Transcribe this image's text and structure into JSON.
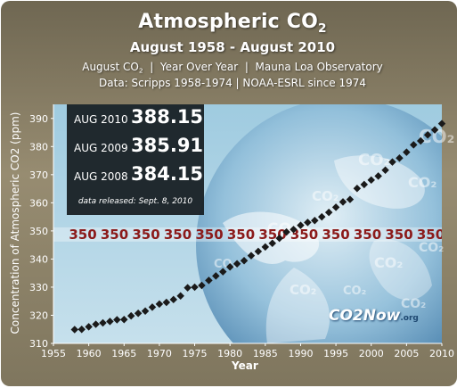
{
  "title": "Atmospheric CO",
  "title_sub": "2",
  "subtitle": "August 1958 - August 2010",
  "info_line1_a": "August CO",
  "info_line1_sub": "2",
  "info_line1_b": "  |  Year Over Year  |  Mauna Loa Observatory",
  "info_line2": "Data: Scripps 1958-1974 | NOAA-ESRL  since 1974",
  "stats": [
    {
      "label": "AUG  2010",
      "value": "388.15"
    },
    {
      "label": "AUG  2009",
      "value": "385.91"
    },
    {
      "label": "AUG  2008",
      "value": "384.15"
    }
  ],
  "data_released": "data released:  Sept. 8,  2010",
  "marker_text": "350",
  "logo": "CO2Now",
  "logo_suffix": ".org",
  "colors": {
    "frame": "#8e8369",
    "plot_bg": "#a6cfe3",
    "marker": "#8b1a1a",
    "point": "#1a1a1a"
  },
  "chart_data": {
    "type": "scatter",
    "xlabel": "Year",
    "ylabel": "Concentration of Atmospheric CO2 (ppm)",
    "xlim": [
      1955,
      2010
    ],
    "ylim": [
      310,
      395
    ],
    "xticks": [
      1955,
      1960,
      1965,
      1970,
      1975,
      1980,
      1985,
      1990,
      1995,
      2000,
      2005,
      2010
    ],
    "yticks": [
      310,
      320,
      330,
      340,
      350,
      360,
      370,
      380,
      390
    ],
    "reference_line": 350,
    "series": [
      {
        "x": [
          1958,
          1959,
          1960,
          1961,
          1962,
          1963,
          1964,
          1965,
          1966,
          1967,
          1968,
          1969,
          1970,
          1971,
          1972,
          1973,
          1974,
          1975,
          1976,
          1977,
          1978,
          1979,
          1980,
          1981,
          1982,
          1983,
          1984,
          1985,
          1986,
          1987,
          1988,
          1989,
          1990,
          1991,
          1992,
          1993,
          1994,
          1995,
          1996,
          1997,
          1998,
          1999,
          2000,
          2001,
          2002,
          2003,
          2004,
          2005,
          2006,
          2007,
          2008,
          2009,
          2010
        ],
        "y": [
          314.9,
          315.0,
          315.9,
          316.8,
          317.3,
          317.8,
          318.4,
          318.5,
          319.8,
          320.7,
          321.5,
          322.9,
          324.0,
          324.6,
          325.6,
          326.9,
          329.8,
          330.0,
          330.6,
          332.4,
          334.0,
          335.5,
          337.2,
          338.3,
          339.4,
          341.2,
          342.7,
          344.3,
          345.6,
          347.4,
          349.6,
          350.5,
          352.0,
          353.0,
          353.7,
          355.0,
          356.6,
          358.4,
          360.3,
          361.2,
          365.1,
          366.5,
          368.1,
          369.5,
          371.6,
          374.5,
          375.9,
          378.0,
          380.6,
          382.0,
          384.15,
          385.91,
          388.15
        ]
      }
    ]
  }
}
